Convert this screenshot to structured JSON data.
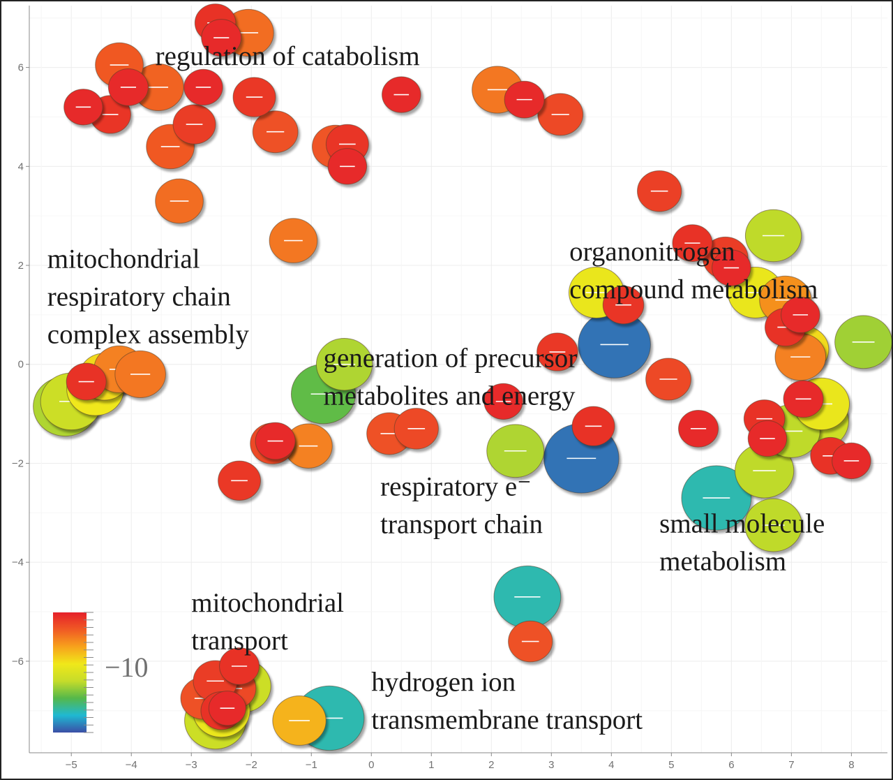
{
  "chart_data": {
    "type": "scatter",
    "title": "",
    "xlabel": "",
    "ylabel": "",
    "xlim": [
      -5.7,
      8.6
    ],
    "ylim": [
      -7.85,
      7.25
    ],
    "x_ticks": [
      -5,
      -4,
      -3,
      -2,
      -1,
      0,
      1,
      2,
      3,
      4,
      5,
      6,
      7,
      8
    ],
    "x_tick_labels": [
      "−5",
      "−4",
      "−3",
      "−2",
      "−1",
      "0",
      "1",
      "2",
      "3",
      "4",
      "5",
      "6",
      "7",
      "8"
    ],
    "y_ticks": [
      -6,
      -4,
      -2,
      0,
      2,
      4,
      6
    ],
    "y_tick_labels": [
      "−6",
      "−4",
      "−2",
      "0",
      "2",
      "4",
      "6"
    ],
    "grid": true,
    "color_scale": {
      "colors": [
        "#3b4ea6",
        "#1fb9d2",
        "#55b84a",
        "#c6dc2a",
        "#f0e81a",
        "#f7a21c",
        "#f05a24",
        "#e5202a"
      ],
      "value_label": "−10",
      "value_position": 0.42,
      "placement": "bottom-left"
    },
    "cluster_labels": [
      {
        "lines": [
          "regulation of catabolism"
        ],
        "x": -3.6,
        "y": 6.05
      },
      {
        "lines": [
          "mitochondrial",
          "respiratory chain",
          "complex assembly"
        ],
        "x": -5.4,
        "y": 1.95
      },
      {
        "lines": [
          "organonitrogen",
          "compound metabolism"
        ],
        "x": 3.3,
        "y": 2.1
      },
      {
        "lines": [
          "generation of precursor",
          "metabolites and energy"
        ],
        "x": -0.8,
        "y": -0.05
      },
      {
        "lines": [
          "respiratory e⁻",
          "transport chain"
        ],
        "x": 0.15,
        "y": -2.65
      },
      {
        "lines": [
          "small molecule",
          "metabolism"
        ],
        "x": 4.8,
        "y": -3.4
      },
      {
        "lines": [
          "mitochondrial",
          "transport"
        ],
        "x": -3.0,
        "y": -5.0
      },
      {
        "lines": [
          "hydrogen ion",
          "transmembrane  transport"
        ],
        "x": 0.0,
        "y": -6.6
      }
    ],
    "points": [
      {
        "x": -2.6,
        "y": 6.9,
        "value": 0.96,
        "size": 0.42
      },
      {
        "x": -2.05,
        "y": 6.7,
        "value": 0.82,
        "size": 0.6
      },
      {
        "x": -2.5,
        "y": 6.6,
        "value": 0.97,
        "size": 0.4
      },
      {
        "x": -4.2,
        "y": 6.05,
        "value": 0.86,
        "size": 0.55
      },
      {
        "x": -4.05,
        "y": 5.6,
        "value": 0.97,
        "size": 0.4
      },
      {
        "x": -3.55,
        "y": 5.6,
        "value": 0.84,
        "size": 0.6
      },
      {
        "x": -2.8,
        "y": 5.6,
        "value": 0.97,
        "size": 0.38
      },
      {
        "x": -4.8,
        "y": 5.2,
        "value": 0.97,
        "size": 0.38
      },
      {
        "x": -4.35,
        "y": 5.05,
        "value": 0.95,
        "size": 0.42
      },
      {
        "x": -1.95,
        "y": 5.4,
        "value": 0.94,
        "size": 0.45
      },
      {
        "x": -2.95,
        "y": 4.85,
        "value": 0.93,
        "size": 0.45
      },
      {
        "x": -1.6,
        "y": 4.7,
        "value": 0.88,
        "size": 0.5
      },
      {
        "x": -3.35,
        "y": 4.4,
        "value": 0.86,
        "size": 0.55
      },
      {
        "x": -0.6,
        "y": 4.4,
        "value": 0.87,
        "size": 0.52
      },
      {
        "x": -0.4,
        "y": 4.45,
        "value": 0.95,
        "size": 0.45
      },
      {
        "x": -0.4,
        "y": 4.0,
        "value": 0.97,
        "size": 0.38
      },
      {
        "x": -3.2,
        "y": 3.3,
        "value": 0.82,
        "size": 0.55
      },
      {
        "x": -1.3,
        "y": 2.5,
        "value": 0.8,
        "size": 0.55
      },
      {
        "x": 0.5,
        "y": 5.45,
        "value": 0.97,
        "size": 0.38
      },
      {
        "x": 2.1,
        "y": 5.55,
        "value": 0.8,
        "size": 0.6
      },
      {
        "x": 2.55,
        "y": 5.35,
        "value": 0.97,
        "size": 0.4
      },
      {
        "x": 3.15,
        "y": 5.05,
        "value": 0.9,
        "size": 0.5
      },
      {
        "x": 4.8,
        "y": 3.5,
        "value": 0.92,
        "size": 0.48
      },
      {
        "x": 5.35,
        "y": 2.45,
        "value": 0.96,
        "size": 0.4
      },
      {
        "x": 5.9,
        "y": 2.15,
        "value": 0.93,
        "size": 0.5
      },
      {
        "x": 6.0,
        "y": 1.95,
        "value": 0.97,
        "size": 0.38
      },
      {
        "x": 6.7,
        "y": 2.6,
        "value": 0.42,
        "size": 0.7
      },
      {
        "x": 3.75,
        "y": 1.45,
        "value": 0.55,
        "size": 0.68
      },
      {
        "x": 4.2,
        "y": 1.2,
        "value": 0.95,
        "size": 0.42
      },
      {
        "x": 6.4,
        "y": 1.45,
        "value": 0.55,
        "size": 0.68
      },
      {
        "x": 6.9,
        "y": 1.3,
        "value": 0.75,
        "size": 0.62
      },
      {
        "x": 7.15,
        "y": 1.0,
        "value": 0.97,
        "size": 0.38
      },
      {
        "x": 6.9,
        "y": 0.75,
        "value": 0.96,
        "size": 0.42
      },
      {
        "x": 7.2,
        "y": 0.3,
        "value": 0.6,
        "size": 0.6
      },
      {
        "x": 7.15,
        "y": 0.15,
        "value": 0.78,
        "size": 0.6
      },
      {
        "x": 8.2,
        "y": 0.45,
        "value": 0.38,
        "size": 0.72
      },
      {
        "x": 4.05,
        "y": 0.4,
        "value": 0.05,
        "size": 1.0
      },
      {
        "x": 3.1,
        "y": 0.25,
        "value": 0.94,
        "size": 0.42
      },
      {
        "x": 4.95,
        "y": -0.3,
        "value": 0.9,
        "size": 0.5
      },
      {
        "x": -0.45,
        "y": 0.0,
        "value": 0.4,
        "size": 0.7
      },
      {
        "x": -0.8,
        "y": -0.6,
        "value": 0.3,
        "size": 0.85
      },
      {
        "x": -5.1,
        "y": -0.85,
        "value": 0.4,
        "size": 0.85
      },
      {
        "x": -5.0,
        "y": -0.75,
        "value": 0.45,
        "size": 0.8
      },
      {
        "x": -4.6,
        "y": -0.5,
        "value": 0.57,
        "size": 0.72
      },
      {
        "x": -4.45,
        "y": -0.25,
        "value": 0.6,
        "size": 0.6
      },
      {
        "x": -4.2,
        "y": -0.1,
        "value": 0.78,
        "size": 0.6
      },
      {
        "x": -3.85,
        "y": -0.2,
        "value": 0.8,
        "size": 0.6
      },
      {
        "x": -4.75,
        "y": -0.35,
        "value": 0.96,
        "size": 0.4
      },
      {
        "x": 2.2,
        "y": -0.75,
        "value": 0.97,
        "size": 0.38
      },
      {
        "x": 3.7,
        "y": -1.25,
        "value": 0.96,
        "size": 0.45
      },
      {
        "x": 0.3,
        "y": -1.4,
        "value": 0.88,
        "size": 0.5
      },
      {
        "x": 0.75,
        "y": -1.3,
        "value": 0.9,
        "size": 0.48
      },
      {
        "x": -1.05,
        "y": -1.65,
        "value": 0.78,
        "size": 0.55
      },
      {
        "x": -1.65,
        "y": -1.6,
        "value": 0.9,
        "size": 0.48
      },
      {
        "x": -1.6,
        "y": -1.55,
        "value": 0.97,
        "size": 0.4
      },
      {
        "x": -2.2,
        "y": -2.35,
        "value": 0.94,
        "size": 0.45
      },
      {
        "x": 2.4,
        "y": -1.75,
        "value": 0.4,
        "size": 0.72
      },
      {
        "x": 3.5,
        "y": -1.9,
        "value": 0.05,
        "size": 1.05
      },
      {
        "x": 5.45,
        "y": -1.3,
        "value": 0.97,
        "size": 0.4
      },
      {
        "x": 6.55,
        "y": -1.1,
        "value": 0.96,
        "size": 0.42
      },
      {
        "x": 6.6,
        "y": -1.5,
        "value": 0.97,
        "size": 0.38
      },
      {
        "x": 7.0,
        "y": -1.35,
        "value": 0.42,
        "size": 0.72
      },
      {
        "x": 7.45,
        "y": -1.15,
        "value": 0.45,
        "size": 0.78
      },
      {
        "x": 7.5,
        "y": -0.8,
        "value": 0.55,
        "size": 0.7
      },
      {
        "x": 7.2,
        "y": -0.7,
        "value": 0.97,
        "size": 0.4
      },
      {
        "x": 7.65,
        "y": -1.85,
        "value": 0.96,
        "size": 0.4
      },
      {
        "x": 8.0,
        "y": -1.95,
        "value": 0.97,
        "size": 0.38
      },
      {
        "x": 6.55,
        "y": -2.15,
        "value": 0.42,
        "size": 0.75
      },
      {
        "x": 5.75,
        "y": -2.7,
        "value": 0.18,
        "size": 0.95
      },
      {
        "x": 6.7,
        "y": -3.25,
        "value": 0.42,
        "size": 0.72
      },
      {
        "x": 2.6,
        "y": -4.7,
        "value": 0.18,
        "size": 0.9
      },
      {
        "x": 2.65,
        "y": -5.6,
        "value": 0.88,
        "size": 0.48
      },
      {
        "x": -2.15,
        "y": -6.5,
        "value": 0.45,
        "size": 0.72
      },
      {
        "x": -2.6,
        "y": -7.2,
        "value": 0.45,
        "size": 0.8
      },
      {
        "x": -2.5,
        "y": -7.0,
        "value": 0.55,
        "size": 0.72
      },
      {
        "x": -2.3,
        "y": -6.55,
        "value": 0.9,
        "size": 0.5
      },
      {
        "x": -2.8,
        "y": -6.75,
        "value": 0.88,
        "size": 0.5
      },
      {
        "x": -2.6,
        "y": -6.4,
        "value": 0.93,
        "size": 0.48
      },
      {
        "x": -2.2,
        "y": -6.1,
        "value": 0.96,
        "size": 0.4
      },
      {
        "x": -2.5,
        "y": -7.0,
        "value": 0.96,
        "size": 0.42
      },
      {
        "x": -2.4,
        "y": -6.95,
        "value": 0.97,
        "size": 0.35
      },
      {
        "x": -0.7,
        "y": -7.15,
        "value": 0.18,
        "size": 0.95
      },
      {
        "x": -1.2,
        "y": -7.2,
        "value": 0.68,
        "size": 0.65
      }
    ]
  }
}
